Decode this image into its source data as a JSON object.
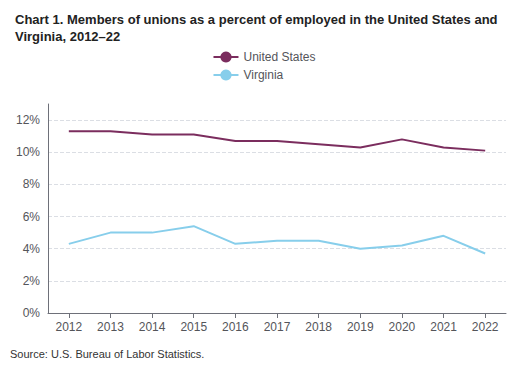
{
  "chart_data": {
    "type": "line",
    "title": "Chart 1. Members of unions as a percent of employed in the United States and\nVirginia, 2012–22",
    "annotations": [
      "Source: U.S. Bureau of Labor Statistics."
    ],
    "x": [
      2012,
      2013,
      2014,
      2015,
      2016,
      2017,
      2018,
      2019,
      2020,
      2021,
      2022
    ],
    "series": [
      {
        "name": "United States",
        "color": "#7B2D5E",
        "values": [
          11.3,
          11.3,
          11.1,
          11.1,
          10.7,
          10.7,
          10.5,
          10.3,
          10.8,
          10.3,
          10.1
        ]
      },
      {
        "name": "Virginia",
        "color": "#87CEEB",
        "values": [
          4.3,
          5.0,
          5.0,
          5.4,
          4.3,
          4.5,
          4.5,
          4.0,
          4.2,
          4.8,
          3.7
        ]
      }
    ],
    "xlim": [
      2011.5,
      2022.5
    ],
    "xticks": [
      2012,
      2013,
      2014,
      2015,
      2016,
      2017,
      2018,
      2019,
      2020,
      2021,
      2022
    ],
    "ylim": [
      0,
      13
    ],
    "yticks": [
      {
        "value": 0,
        "label": "0%"
      },
      {
        "value": 2,
        "label": "2%"
      },
      {
        "value": 4,
        "label": "4%"
      },
      {
        "value": 6,
        "label": "6%"
      },
      {
        "value": 8,
        "label": "8%"
      },
      {
        "value": 10,
        "label": "10%"
      },
      {
        "value": 12,
        "label": "12%"
      }
    ],
    "grid": true,
    "legend": "top"
  }
}
